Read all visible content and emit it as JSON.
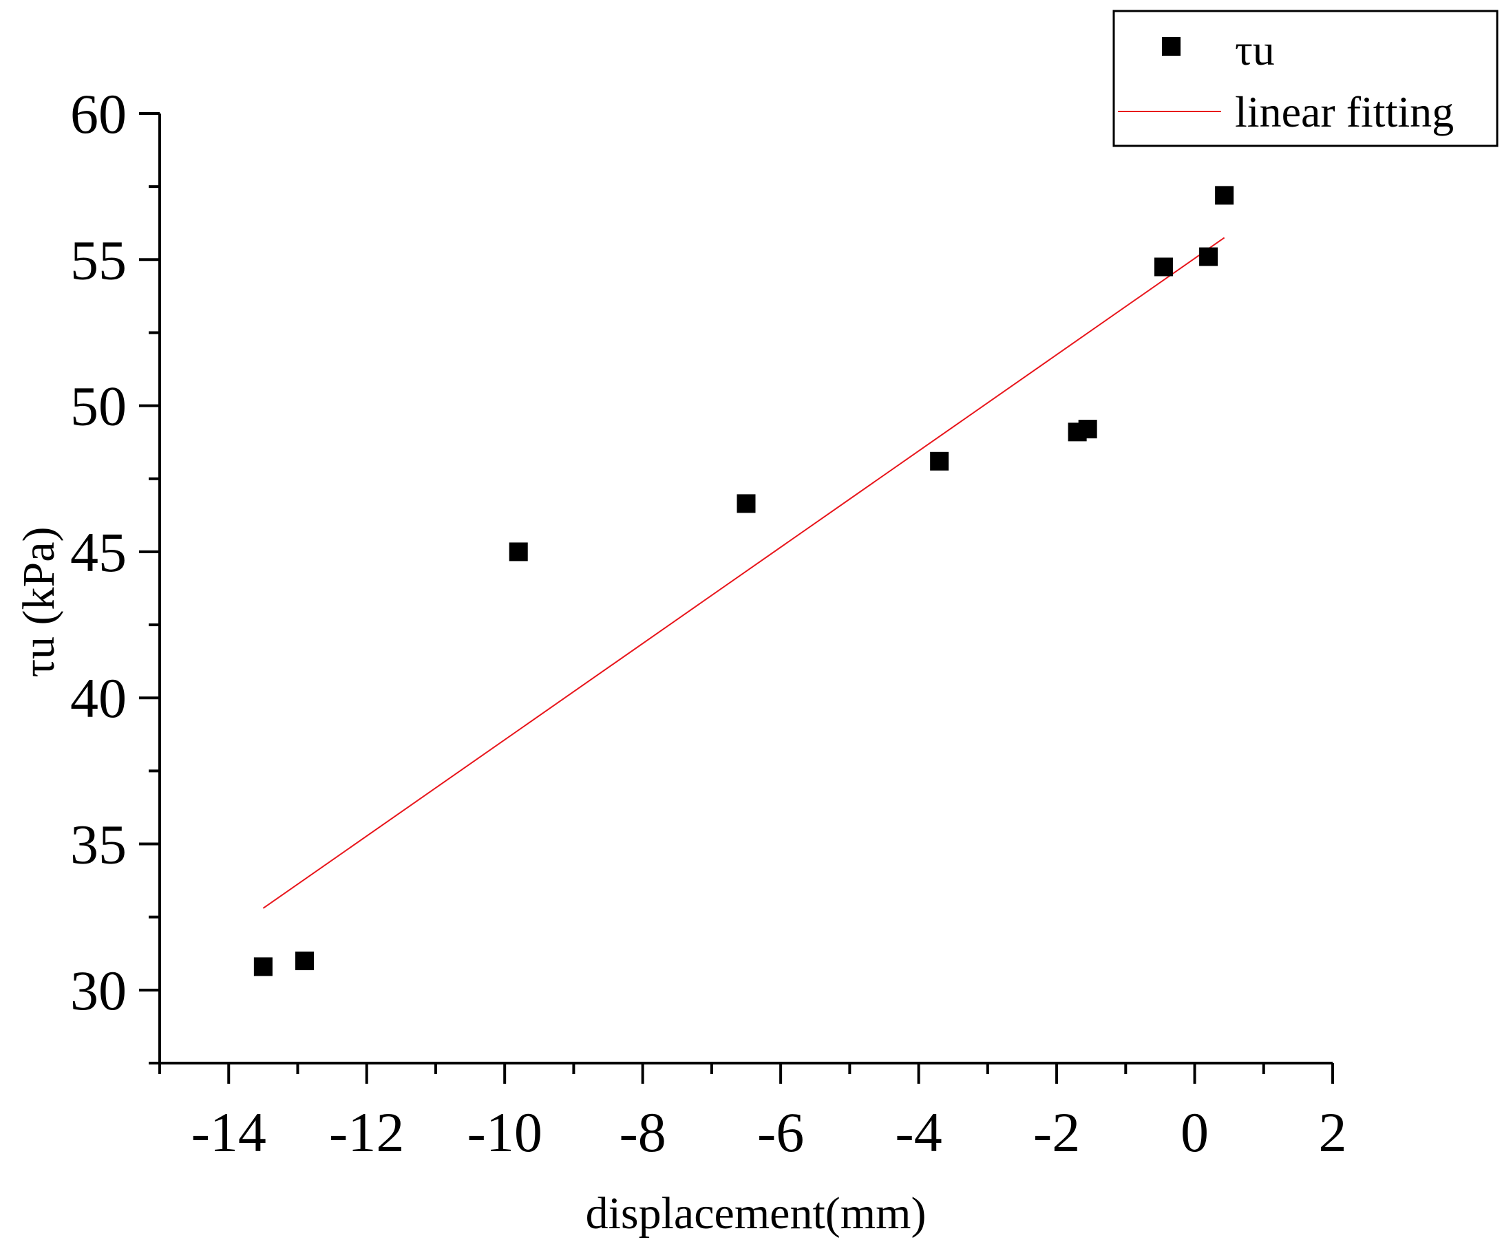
{
  "chart_data": {
    "type": "scatter",
    "title": "",
    "xlabel": "displacement(mm)",
    "ylabel": "τu (kPa)",
    "xlim": [
      -15,
      2
    ],
    "ylim": [
      27.5,
      60
    ],
    "x_ticks": [
      -14,
      -12,
      -10,
      -8,
      -6,
      -4,
      -2,
      0,
      2
    ],
    "x_tick_labels": [
      "-14",
      "-12",
      "-10",
      "-8",
      "-6",
      "-4",
      "-2",
      "0",
      "2"
    ],
    "y_ticks": [
      30,
      35,
      40,
      45,
      50,
      55,
      60
    ],
    "y_tick_labels": [
      "30",
      "35",
      "40",
      "45",
      "50",
      "55",
      "60"
    ],
    "grid": false,
    "legend_position": "top-right",
    "series": [
      {
        "name": "τu",
        "kind": "scatter",
        "marker": "square",
        "color": "#000000",
        "x": [
          -13.5,
          -12.9,
          -9.8,
          -6.5,
          -3.7,
          -1.7,
          -1.55,
          -0.45,
          0.2,
          0.43
        ],
        "y": [
          30.8,
          31.0,
          45.0,
          46.65,
          48.1,
          49.1,
          49.2,
          54.75,
          55.1,
          57.2
        ]
      },
      {
        "name": "linear fitting",
        "kind": "line",
        "color": "#e8151b",
        "x": [
          -13.5,
          0.43
        ],
        "y": [
          32.8,
          55.75
        ]
      }
    ]
  }
}
